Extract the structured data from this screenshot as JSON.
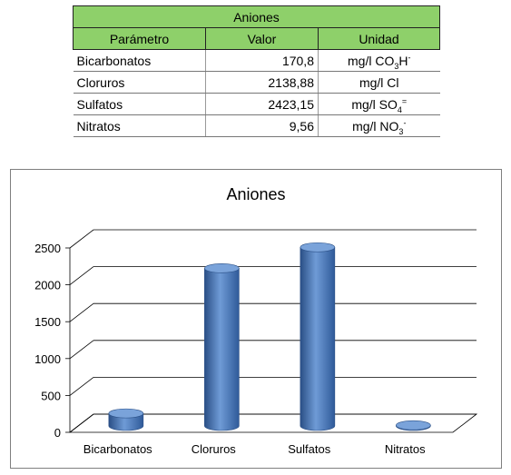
{
  "table": {
    "title": "Aniones",
    "headers": [
      "Parámetro",
      "Valor",
      "Unidad"
    ],
    "rows": [
      {
        "parametro": "Bicarbonatos",
        "valor": "170,8",
        "unidad_base": "mg/l CO",
        "unidad_sub": "3",
        "unidad_tail": "H",
        "unidad_sup": "-"
      },
      {
        "parametro": "Cloruros",
        "valor": "2138,88",
        "unidad_base": "mg/l Cl",
        "unidad_sub": "",
        "unidad_tail": "",
        "unidad_sup": ""
      },
      {
        "parametro": "Sulfatos",
        "valor": "2423,15",
        "unidad_base": "mg/l SO",
        "unidad_sub": "4",
        "unidad_tail": "",
        "unidad_sup": "="
      },
      {
        "parametro": "Nitratos",
        "valor": "9,56",
        "unidad_base": "mg/l NO",
        "unidad_sub": "3",
        "unidad_tail": "",
        "unidad_sup": "-"
      }
    ]
  },
  "chart_data": {
    "type": "bar",
    "style": "3d-cylinder",
    "title": "Aniones",
    "categories": [
      "Bicarbonatos",
      "Cloruros",
      "Sulfatos",
      "Nitratos"
    ],
    "values": [
      170.8,
      2138.88,
      2423.15,
      9.56
    ],
    "ylim": [
      0,
      2500
    ],
    "yticks": [
      0,
      500,
      1000,
      1500,
      2000,
      2500
    ],
    "grid": true,
    "legend": "none",
    "colors": {
      "bar": "#4f81bd",
      "bar_dark": "#2a4f86",
      "bar_light": "#7aa3da",
      "grid": "#000000"
    }
  }
}
